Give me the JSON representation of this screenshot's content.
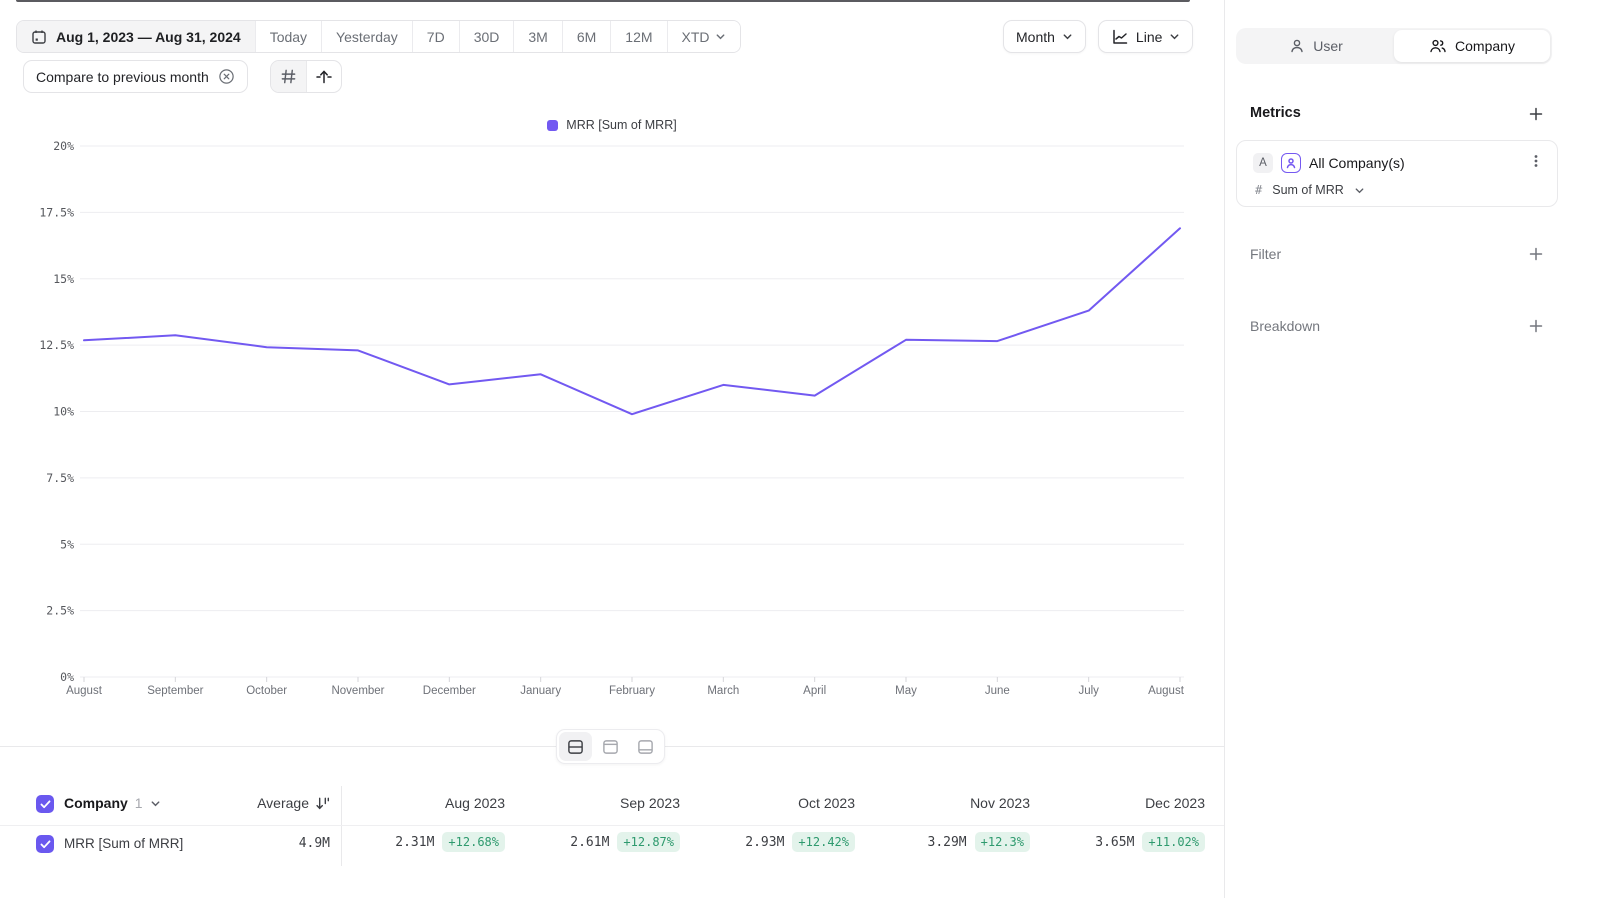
{
  "colors": {
    "accent_purple": "#7259f1",
    "checkbox_purple": "#6a58ef",
    "delta_bg": "#e3f3eb",
    "delta_text": "#2e9a6e",
    "grid_line": "#ededf0",
    "axis_text": "#6e7178"
  },
  "toolbar": {
    "date_range": "Aug 1, 2023 — Aug 31, 2024",
    "presets": [
      "Today",
      "Yesterday",
      "7D",
      "30D",
      "3M",
      "6M",
      "12M"
    ],
    "xtd_label": "XTD",
    "granularity_label": "Month",
    "chart_type_label": "Line",
    "compare_label": "Compare to previous month"
  },
  "chart_data": {
    "type": "line",
    "title": "",
    "legend_position": "top-center",
    "legend": [
      "MRR [Sum of MRR]"
    ],
    "x": [
      "August",
      "September",
      "October",
      "November",
      "December",
      "January",
      "February",
      "March",
      "April",
      "May",
      "June",
      "July",
      "August"
    ],
    "series": [
      {
        "name": "MRR [Sum of MRR]",
        "color": "#7259f1",
        "values": [
          12.68,
          12.87,
          12.42,
          12.3,
          11.02,
          11.4,
          9.9,
          11.0,
          10.6,
          12.7,
          12.65,
          13.8,
          16.9
        ]
      }
    ],
    "ylim": [
      0,
      20
    ],
    "ytick_step": 2.5,
    "ytick_suffix": "%",
    "grid": "horizontal-only"
  },
  "sidebar": {
    "toggle": {
      "user_label": "User",
      "company_label": "Company",
      "active": "Company"
    },
    "metrics_title": "Metrics",
    "metric_card": {
      "badge": "A",
      "name": "All Company(s)",
      "agg_prefix": "#",
      "agg_label": "Sum of MRR"
    },
    "filter_label": "Filter",
    "breakdown_label": "Breakdown"
  },
  "table": {
    "entity_label": "Company",
    "entity_count": "1",
    "average_label": "Average",
    "columns": [
      "Aug 2023",
      "Sep 2023",
      "Oct 2023",
      "Nov 2023",
      "Dec 2023"
    ],
    "rows": [
      {
        "label": "MRR [Sum of MRR]",
        "average": "4.9M",
        "cells": [
          {
            "value": "2.31M",
            "delta": "+12.68%"
          },
          {
            "value": "2.61M",
            "delta": "+12.87%"
          },
          {
            "value": "2.93M",
            "delta": "+12.42%"
          },
          {
            "value": "3.29M",
            "delta": "+12.3%"
          },
          {
            "value": "3.65M",
            "delta": "+11.02%"
          }
        ]
      }
    ]
  }
}
